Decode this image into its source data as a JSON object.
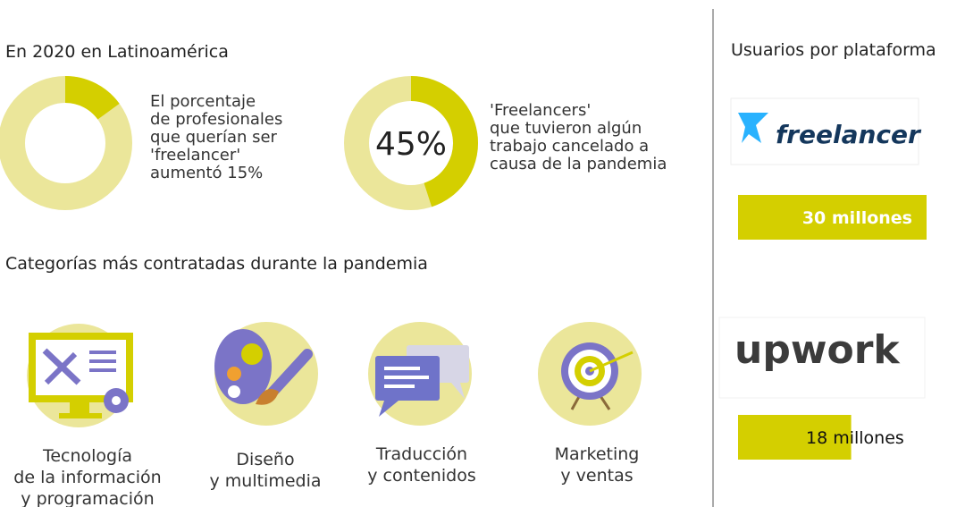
{
  "left": {
    "title": "En 2020 en Latinoamérica",
    "stats": [
      {
        "lines": [
          "El porcentaje",
          "de profesionales",
          "que querían ser",
          "'freelancer'",
          "aumentó"
        ],
        "value": 15,
        "label": "15%"
      },
      {
        "lines": [
          "'Freelancers'",
          "que tuvieron algún",
          "trabajo cancelado a",
          "causa de la pandemia"
        ],
        "value": 45,
        "label": "45%"
      }
    ],
    "categories_title": "Categorías más contratadas durante la pandemia",
    "categories": [
      [
        "Tecnología",
        "de la información",
        "y programación"
      ],
      [
        "Diseño",
        "y multimedia"
      ],
      [
        "Traducción",
        "y contenidos"
      ],
      [
        "Marketing",
        "y ventas"
      ]
    ]
  },
  "right": {
    "title": "Usuarios por plataforma",
    "platforms": [
      {
        "name": "freelancer",
        "value": 30,
        "label": "30 millones"
      },
      {
        "name": "upwork",
        "value": 18,
        "label": "18 millones"
      }
    ]
  }
}
